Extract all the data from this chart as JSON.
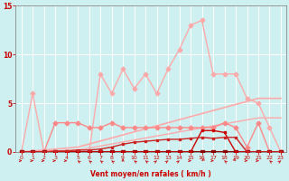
{
  "bg_color": "#cef0f0",
  "grid_color": "#ffffff",
  "xlabel": "Vent moyen/en rafales ( km/h )",
  "xlabel_color": "#cc0000",
  "tick_color": "#cc0000",
  "axis_color": "#888888",
  "xlim": [
    -0.5,
    23.5
  ],
  "ylim": [
    0,
    15
  ],
  "yticks": [
    0,
    5,
    10,
    15
  ],
  "xticks": [
    0,
    1,
    2,
    3,
    4,
    5,
    6,
    7,
    8,
    9,
    10,
    11,
    12,
    13,
    14,
    15,
    16,
    17,
    18,
    19,
    20,
    21,
    22,
    23
  ],
  "series": [
    {
      "x": [
        0,
        1,
        2,
        3,
        4,
        5,
        6,
        7,
        8,
        9,
        10,
        11,
        12,
        13,
        14,
        15,
        16,
        17,
        18,
        19,
        20,
        21,
        22,
        23
      ],
      "y": [
        0,
        6,
        0,
        0,
        0,
        0,
        0,
        8,
        6,
        8.5,
        6.5,
        8,
        6,
        8.5,
        10.5,
        13,
        13.5,
        8,
        8,
        8,
        5.5,
        5,
        2.5,
        0
      ],
      "color": "#ffaaaa",
      "lw": 1.0,
      "marker": "D",
      "ms": 2.5,
      "zorder": 3
    },
    {
      "x": [
        0,
        5,
        21,
        23
      ],
      "y": [
        0,
        0.5,
        5.5,
        5.5
      ],
      "color": "#ffaaaa",
      "lw": 1.2,
      "marker": null,
      "ms": 0,
      "zorder": 2
    },
    {
      "x": [
        0,
        5,
        21,
        23
      ],
      "y": [
        0,
        0.2,
        3.5,
        3.5
      ],
      "color": "#ffaaaa",
      "lw": 1.0,
      "marker": null,
      "ms": 0,
      "zorder": 2
    },
    {
      "x": [
        0,
        1,
        2,
        3,
        4,
        5,
        6,
        7,
        8,
        9,
        10,
        11,
        12,
        13,
        14,
        15,
        16,
        17,
        18,
        19,
        20,
        21,
        22,
        23
      ],
      "y": [
        0,
        0,
        0,
        3,
        3,
        3,
        2.5,
        2.5,
        3,
        2.5,
        2.5,
        2.5,
        2.5,
        2.5,
        2.5,
        2.5,
        2.5,
        2.5,
        3,
        2.5,
        0.5,
        3,
        0,
        0
      ],
      "color": "#ff8888",
      "lw": 1.0,
      "marker": "D",
      "ms": 2.5,
      "zorder": 3
    },
    {
      "x": [
        0,
        1,
        2,
        3,
        4,
        5,
        6,
        7,
        8,
        9,
        10,
        11,
        12,
        13,
        14,
        15,
        16,
        17,
        18,
        19,
        20,
        21,
        22,
        23
      ],
      "y": [
        0,
        0,
        0,
        0,
        0,
        0,
        0,
        0,
        0,
        0,
        0,
        0,
        0,
        0,
        0,
        0,
        0,
        0,
        0,
        0,
        0,
        0,
        0,
        0
      ],
      "color": "#880000",
      "lw": 1.5,
      "marker": "s",
      "ms": 2.5,
      "zorder": 4
    },
    {
      "x": [
        0,
        1,
        2,
        3,
        4,
        5,
        6,
        7,
        8,
        9,
        10,
        11,
        12,
        13,
        14,
        15,
        16,
        17,
        18,
        19,
        20,
        21,
        22,
        23
      ],
      "y": [
        0,
        0,
        0,
        0,
        0,
        0,
        0,
        0,
        0,
        0,
        0,
        0,
        0,
        0,
        0,
        0,
        2.2,
        2.2,
        2,
        0,
        0,
        0,
        0,
        0
      ],
      "color": "#cc0000",
      "lw": 1.0,
      "marker": "s",
      "ms": 2,
      "zorder": 4
    },
    {
      "x": [
        0,
        1,
        2,
        3,
        4,
        5,
        6,
        7,
        8,
        9,
        10,
        11,
        12,
        13,
        14,
        15,
        16,
        17,
        18,
        19,
        20,
        21,
        22,
        23
      ],
      "y": [
        0,
        0,
        0,
        0.1,
        0.1,
        0.2,
        0.2,
        0.3,
        0.5,
        0.8,
        1.0,
        1.1,
        1.2,
        1.3,
        1.3,
        1.4,
        1.5,
        1.4,
        1.5,
        1.5,
        0,
        0,
        0,
        0
      ],
      "color": "#cc2222",
      "lw": 1.0,
      "marker": "s",
      "ms": 1.5,
      "zorder": 4
    }
  ],
  "wind_arrows": {
    "x": [
      0,
      1,
      2,
      3,
      4,
      5,
      6,
      7,
      8,
      9,
      10,
      11,
      12,
      13,
      14,
      15,
      16,
      17,
      18,
      19,
      20,
      21,
      22,
      23
    ],
    "angles": [
      90,
      90,
      90,
      90,
      90,
      315,
      315,
      315,
      315,
      0,
      315,
      315,
      45,
      45,
      45,
      90,
      225,
      90,
      315,
      135,
      90,
      90,
      315,
      45
    ],
    "color": "#cc0000"
  }
}
